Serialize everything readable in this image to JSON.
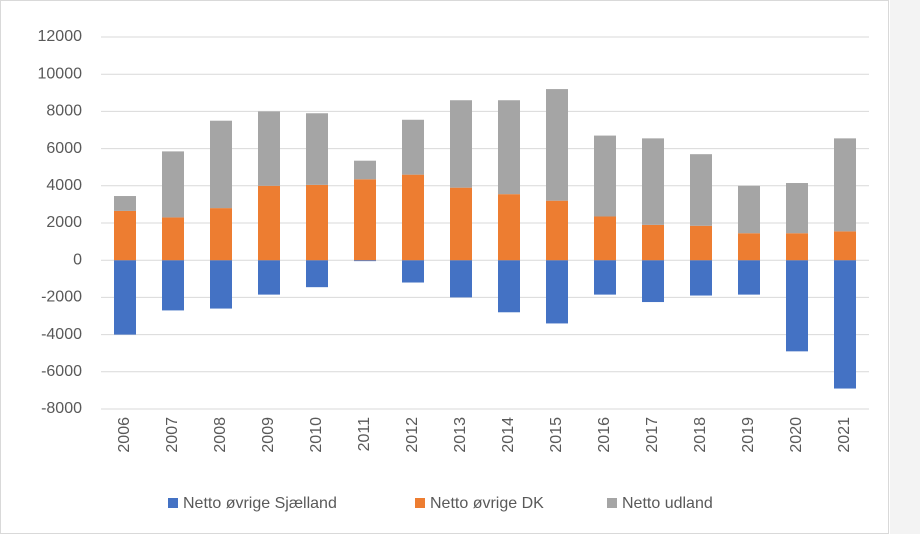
{
  "chart_data": {
    "type": "stacked_bar",
    "categories": [
      "2006",
      "2007",
      "2008",
      "2009",
      "2010",
      "2011",
      "2012",
      "2013",
      "2014",
      "2015",
      "2016",
      "2017",
      "2018",
      "2019",
      "2020",
      "2021"
    ],
    "series": [
      {
        "name": "Netto øvrige Sjælland",
        "color": "#4472c4",
        "values": [
          -4000,
          -2700,
          -2600,
          -1850,
          -1450,
          -50,
          -1200,
          -2000,
          -2800,
          -3400,
          -1850,
          -2250,
          -1900,
          -1850,
          -4900,
          -6900
        ]
      },
      {
        "name": "Netto øvrige DK",
        "color": "#ed7d31",
        "values": [
          2650,
          2300,
          2800,
          4000,
          4050,
          4350,
          4600,
          3900,
          3550,
          3200,
          2350,
          1900,
          1850,
          1450,
          1450,
          1550
        ]
      },
      {
        "name": "Netto udland",
        "color": "#a5a5a5",
        "values": [
          800,
          3550,
          4700,
          4000,
          3850,
          1000,
          2950,
          4700,
          5050,
          6000,
          4350,
          4650,
          3850,
          2550,
          2700,
          5000
        ]
      }
    ],
    "ylim": [
      -8000,
      12000
    ],
    "yticks": [
      -8000,
      -6000,
      -4000,
      -2000,
      0,
      2000,
      4000,
      6000,
      8000,
      10000,
      12000
    ],
    "grid": true,
    "legend": "bottom"
  }
}
